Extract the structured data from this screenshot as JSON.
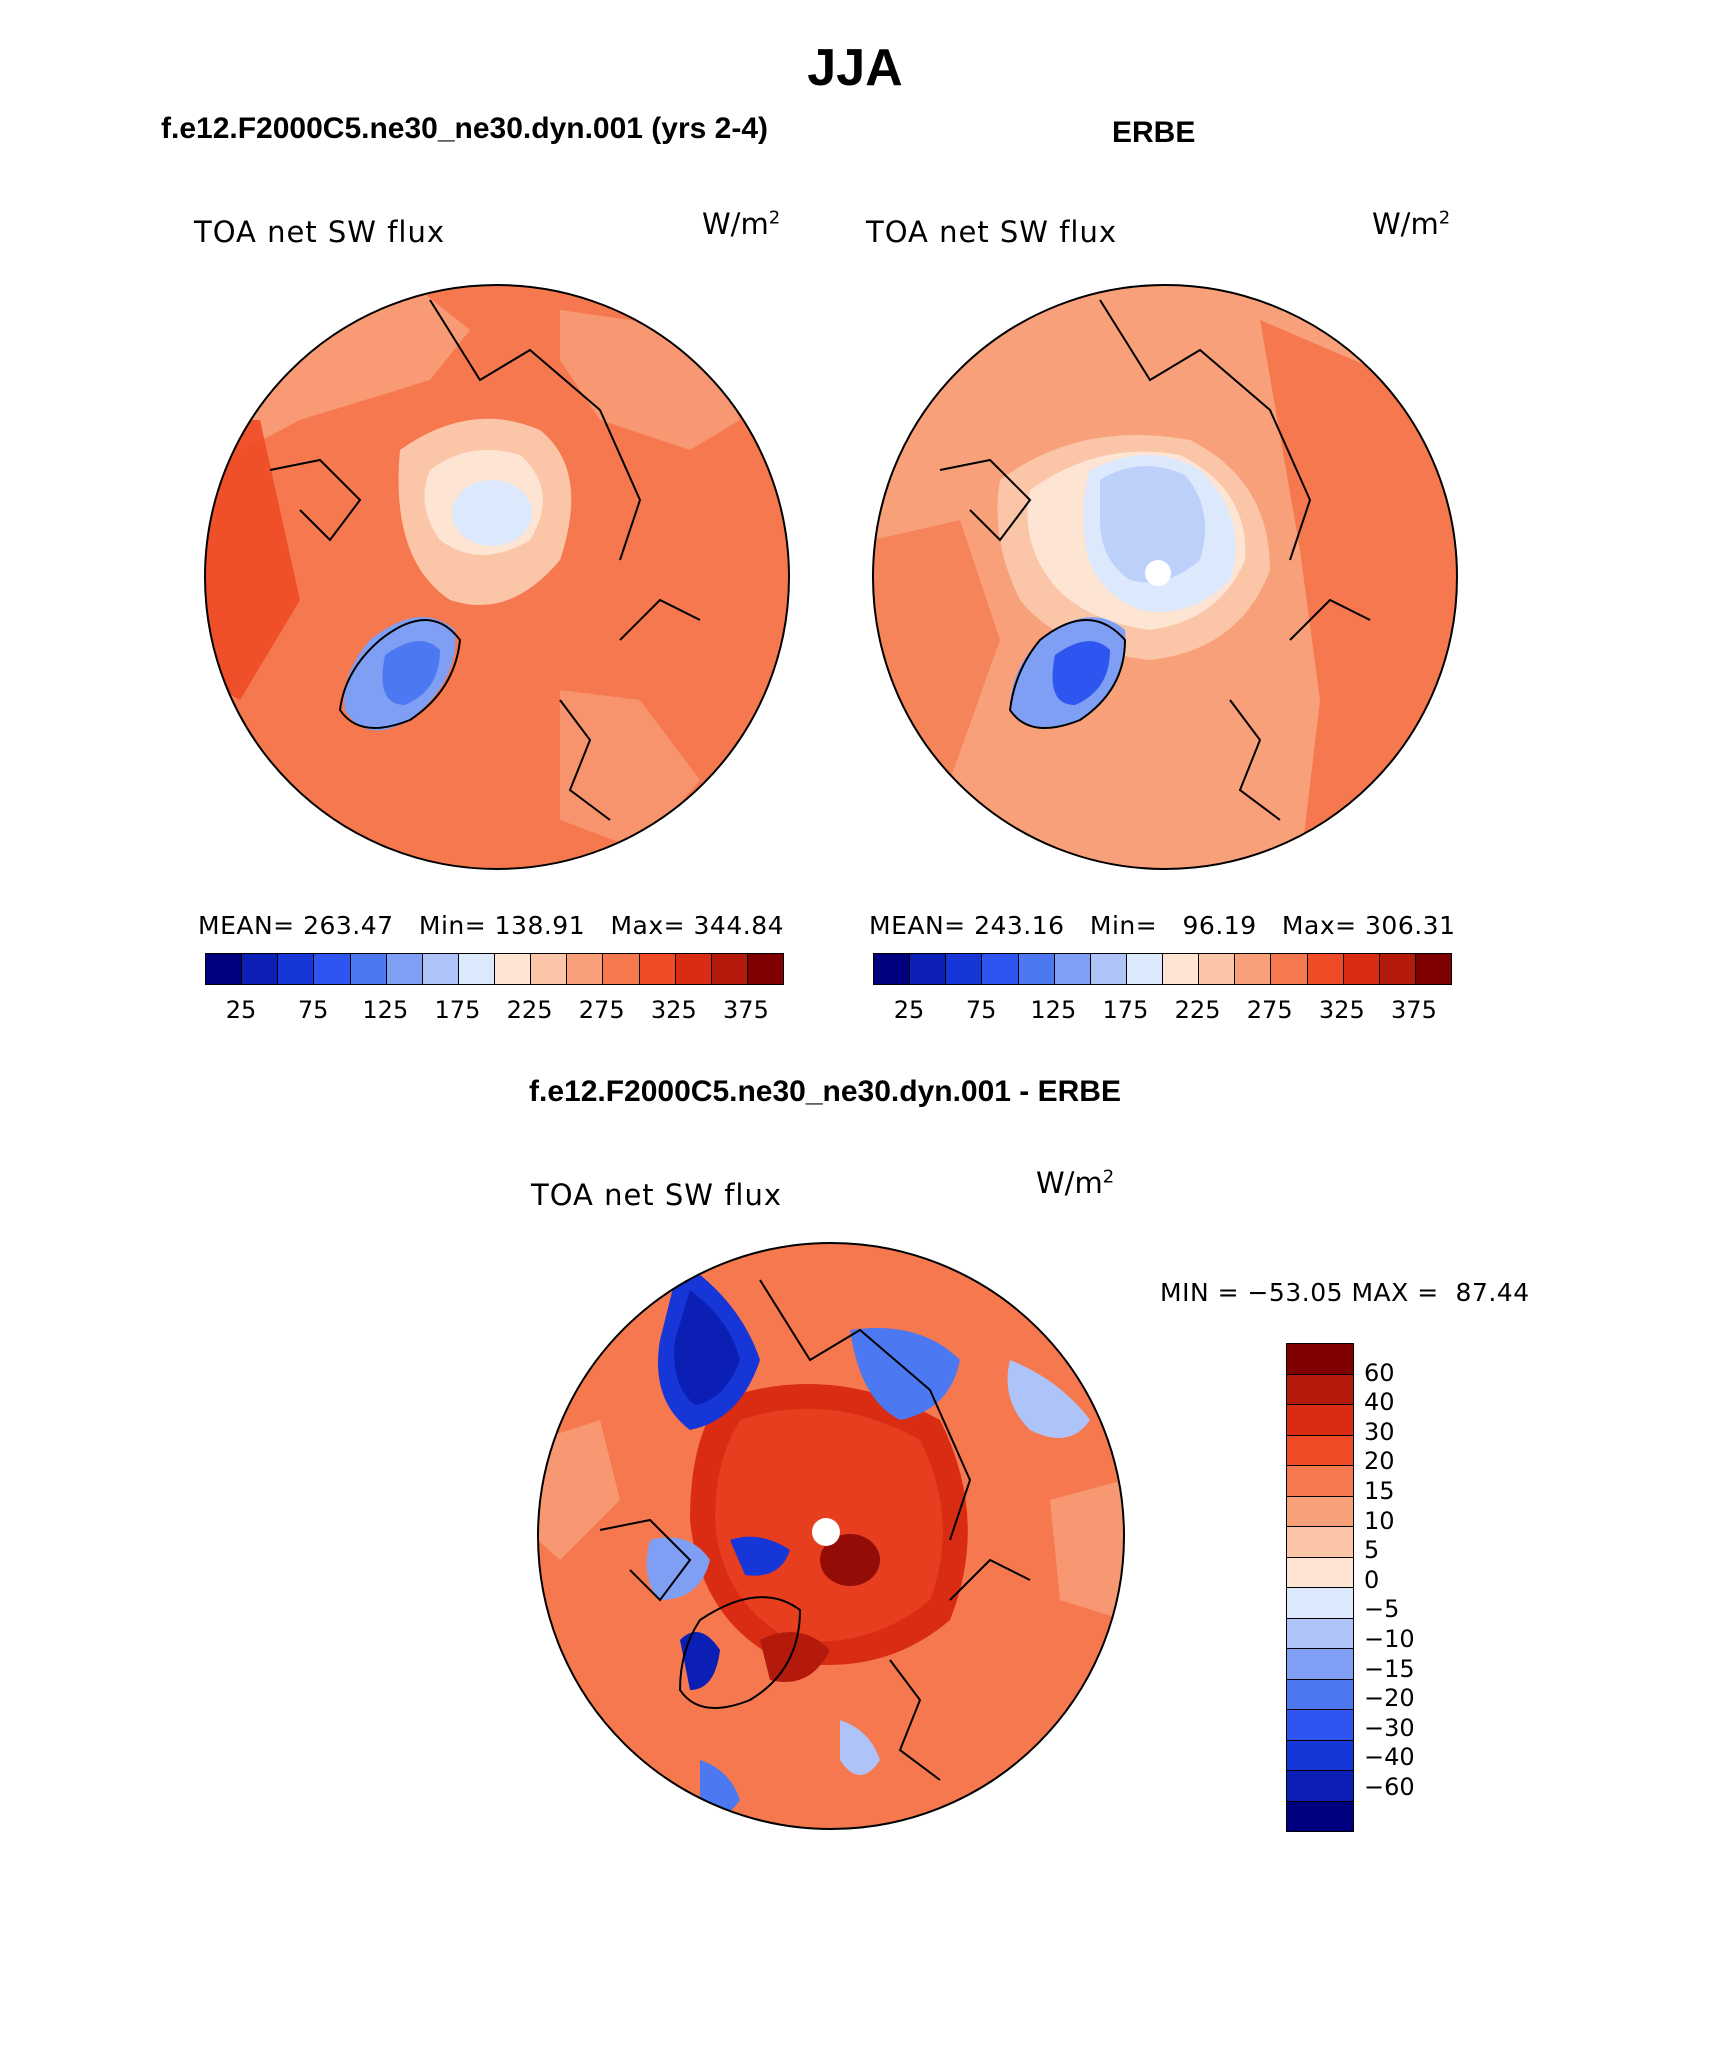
{
  "figure": {
    "season_title": "JJA",
    "panels": {
      "model": {
        "header": "f.e12.F2000C5.ne30_ne30.dyn.001 (yrs 2-4)",
        "variable": "TOA net SW flux",
        "units": "W/m",
        "units_exp": "2",
        "stats": "MEAN= 263.47   Min= 138.91   Max= 344.84",
        "colorbar_ticks": [
          "25",
          "75",
          "125",
          "175",
          "225",
          "275",
          "325",
          "375"
        ]
      },
      "obs": {
        "header": "ERBE",
        "variable": "TOA net SW flux",
        "units": "W/m",
        "units_exp": "2",
        "stats": "MEAN= 243.16   Min=   96.19   Max= 306.31",
        "colorbar_ticks": [
          "25",
          "75",
          "125",
          "175",
          "225",
          "275",
          "325",
          "375"
        ]
      },
      "diff": {
        "header": "f.e12.F2000C5.ne30_ne30.dyn.001 - ERBE",
        "variable": "TOA net SW flux",
        "units": "W/m",
        "units_exp": "2",
        "stats": "MIN = −53.05 MAX =  87.44",
        "colorbar_ticks": [
          "60",
          "40",
          "30",
          "20",
          "15",
          "10",
          "5",
          "0",
          "−5",
          "−10",
          "−15",
          "−20",
          "−30",
          "−40",
          "−60"
        ]
      }
    },
    "colors": {
      "abs_scale": [
        "#00007f",
        "#0b1fb4",
        "#1636d8",
        "#2f55f0",
        "#4c78f2",
        "#7f9ff5",
        "#aec4f8",
        "#dce9fc",
        "#fde4d3",
        "#fbc6a8",
        "#f8a07a",
        "#f5784f",
        "#ee4b26",
        "#d92c13",
        "#b31a0b",
        "#7f0000"
      ],
      "diff_scale": [
        "#7f0000",
        "#b31a0b",
        "#d92c13",
        "#ee4b26",
        "#f5784f",
        "#f8a07a",
        "#fbc6a8",
        "#fde4d3",
        "#dce9fc",
        "#aec4f8",
        "#7f9ff5",
        "#4c78f2",
        "#2f55f0",
        "#1636d8",
        "#0b1fb4",
        "#00007f"
      ]
    }
  }
}
